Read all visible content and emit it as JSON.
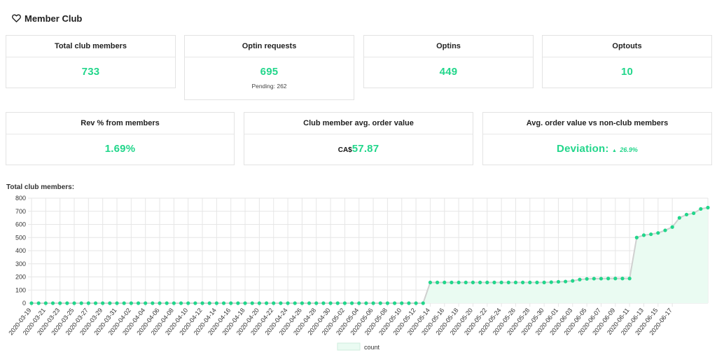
{
  "header": {
    "icon": "heart-icon",
    "title": "Member Club"
  },
  "cards_row1": [
    {
      "key": "total",
      "label": "Total club members",
      "value": "733"
    },
    {
      "key": "optin-requests",
      "label": "Optin requests",
      "value": "695",
      "sub": "Pending: 262"
    },
    {
      "key": "optins",
      "label": "Optins",
      "value": "449"
    },
    {
      "key": "optouts",
      "label": "Optouts",
      "value": "10"
    }
  ],
  "cards_row2": [
    {
      "key": "rev",
      "label": "Rev % from members",
      "value": "1.69%"
    },
    {
      "key": "aov",
      "label": "Club member avg. order value",
      "currency": "CA$",
      "value": "57.87"
    },
    {
      "key": "deviation",
      "label": "Avg. order value vs non-club members",
      "value": "Deviation:",
      "arrow": "▲",
      "pct": "26.9%"
    }
  ],
  "chart_title": "Total club members:",
  "colors": {
    "accent": "#22d68b",
    "line": "#d0d0d0",
    "fill": "#eafbf2",
    "grid": "#e6e6e6"
  },
  "chart_data": {
    "type": "line",
    "title": "",
    "ylim": [
      0,
      800
    ],
    "yticks": [
      0,
      100,
      200,
      300,
      400,
      500,
      600,
      700,
      800
    ],
    "x_tick_labels": [
      "2020-03-19",
      "2020-03-21",
      "2020-03-23",
      "2020-03-25",
      "2020-03-27",
      "2020-03-29",
      "2020-03-31",
      "2020-04-02",
      "2020-04-04",
      "2020-04-06",
      "2020-04-08",
      "2020-04-10",
      "2020-04-12",
      "2020-04-14",
      "2020-04-16",
      "2020-04-18",
      "2020-04-20",
      "2020-04-22",
      "2020-04-24",
      "2020-04-26",
      "2020-04-28",
      "2020-04-30",
      "2020-05-02",
      "2020-05-04",
      "2020-05-06",
      "2020-05-08",
      "2020-05-10",
      "2020-05-12",
      "2020-05-14",
      "2020-05-16",
      "2020-05-18",
      "2020-05-20",
      "2020-05-22",
      "2020-05-24",
      "2020-05-26",
      "2020-05-28",
      "2020-05-30",
      "2020-06-01",
      "2020-06-03",
      "2020-06-05",
      "2020-06-07",
      "2020-06-09",
      "2020-06-11",
      "2020-06-13",
      "2020-06-15",
      "2020-06-17"
    ],
    "series": [
      {
        "name": "count",
        "values": [
          0,
          0,
          0,
          0,
          0,
          0,
          0,
          0,
          0,
          0,
          0,
          0,
          0,
          0,
          0,
          0,
          0,
          0,
          0,
          0,
          0,
          0,
          0,
          0,
          0,
          0,
          0,
          0,
          0,
          0,
          0,
          0,
          0,
          0,
          0,
          0,
          0,
          0,
          0,
          0,
          0,
          0,
          0,
          0,
          0,
          0,
          0,
          0,
          0,
          0,
          0,
          0,
          0,
          0,
          0,
          0,
          158,
          158,
          158,
          158,
          158,
          158,
          158,
          158,
          158,
          158,
          158,
          158,
          158,
          158,
          158,
          158,
          158,
          160,
          163,
          165,
          170,
          180,
          185,
          187,
          187,
          188,
          188,
          188,
          188,
          500,
          518,
          525,
          535,
          555,
          580,
          650,
          675,
          685,
          718,
          728
        ]
      }
    ],
    "legend": "bottom-center",
    "grid": true
  }
}
